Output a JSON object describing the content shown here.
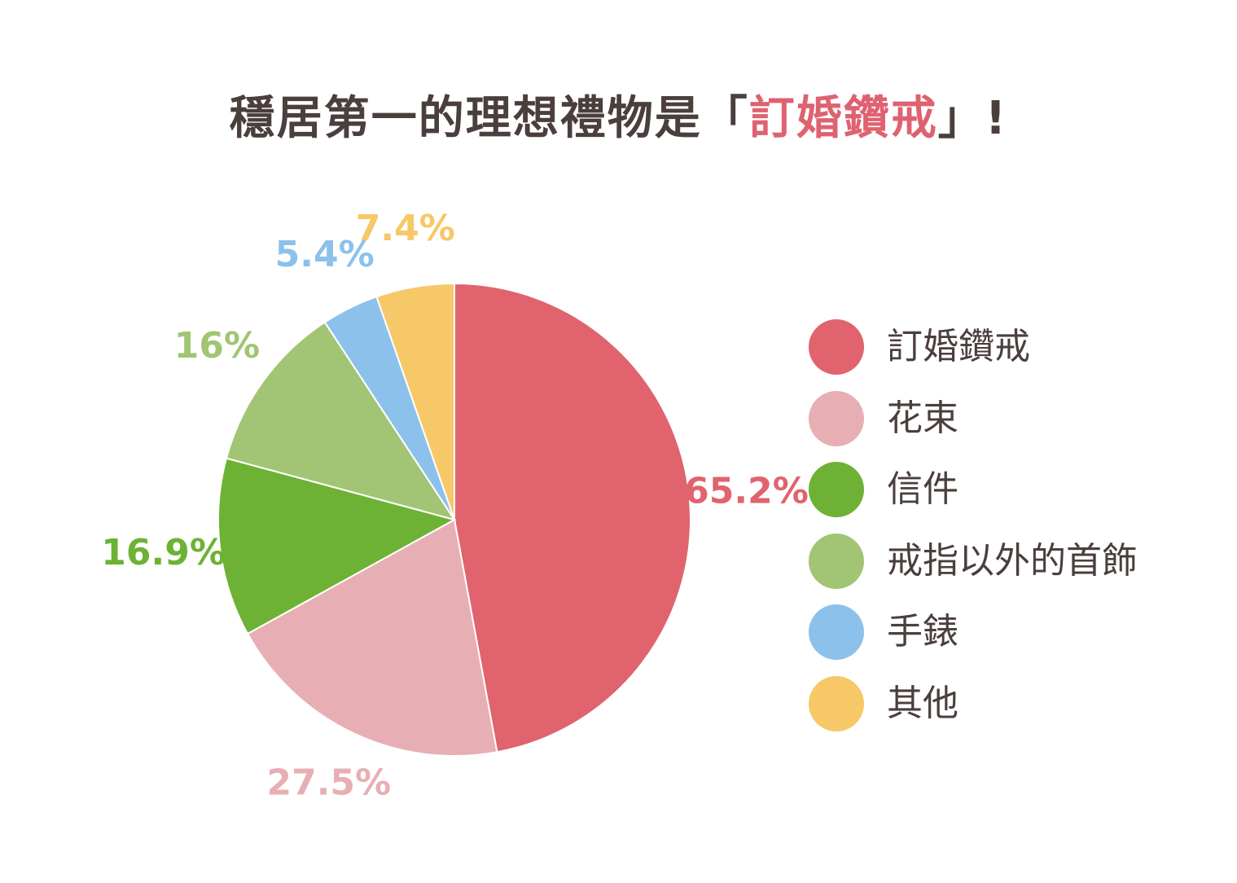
{
  "title": {
    "prefix": "穩居第一的理想禮物是「",
    "highlight": "訂婚鑽戒",
    "suffix": "」!"
  },
  "chart_data": {
    "type": "pie",
    "categories": [
      "訂婚鑽戒",
      "花束",
      "信件",
      "戒指以外的首飾",
      "手錶",
      "其他"
    ],
    "values": [
      65.2,
      27.5,
      16.9,
      16,
      5.4,
      7.4
    ],
    "labels": [
      "65.2%",
      "27.5%",
      "16.9%",
      "16%",
      "5.4%",
      "7.4%"
    ],
    "colors": [
      "#e0636e",
      "#e7afb4",
      "#6db234",
      "#a1c574",
      "#8cc1eb",
      "#f6c868"
    ],
    "legend_position": "right",
    "start": "12 o'clock",
    "direction": "clockwise"
  }
}
